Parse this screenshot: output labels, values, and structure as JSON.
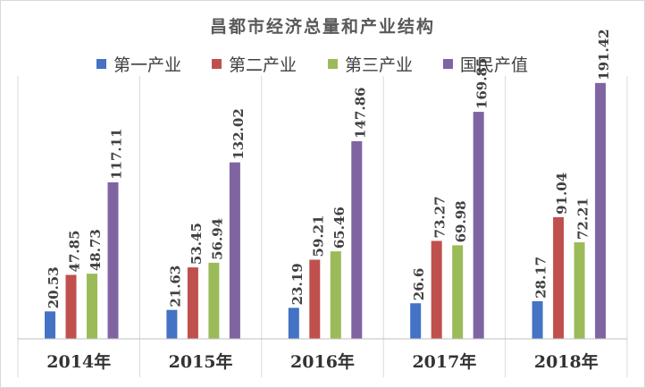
{
  "chart_data": {
    "type": "bar",
    "title": "昌都市经济总量和产业结构",
    "categories": [
      "2014年",
      "2015年",
      "2016年",
      "2017年",
      "2018年"
    ],
    "series": [
      {
        "name": "第一产业",
        "color": "#4472C4",
        "values": [
          20.53,
          21.63,
          23.19,
          26.6,
          28.17
        ]
      },
      {
        "name": "第二产业",
        "color": "#C0504D",
        "values": [
          47.85,
          53.45,
          59.21,
          73.27,
          91.04
        ]
      },
      {
        "name": "第三产业",
        "color": "#9BBB59",
        "values": [
          48.73,
          56.94,
          65.46,
          69.98,
          72.21
        ]
      },
      {
        "name": "国民产值",
        "color": "#8064A2",
        "values": [
          117.11,
          132.02,
          147.86,
          169.85,
          191.42
        ]
      }
    ],
    "ylim": [
      0,
      200
    ],
    "grid": false,
    "legend_position": "top",
    "category_separators": true
  }
}
